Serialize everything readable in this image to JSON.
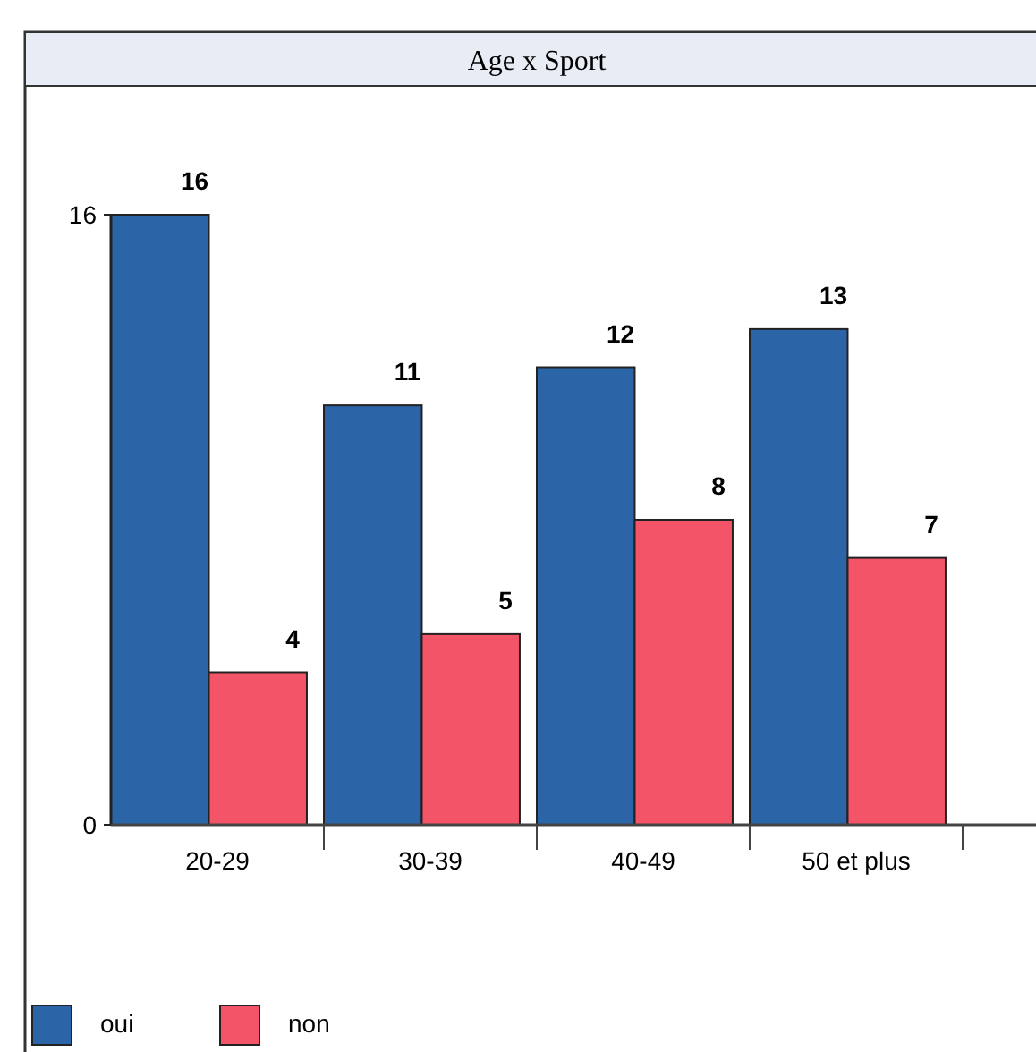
{
  "chart_data": {
    "type": "bar",
    "title": "Age x Sport",
    "categories": [
      "20-29",
      "30-39",
      "40-49",
      "50 et plus"
    ],
    "series": [
      {
        "name": "oui",
        "color": "#2c64a8",
        "values": [
          16,
          11,
          12,
          13
        ]
      },
      {
        "name": "non",
        "color": "#f45468",
        "values": [
          4,
          5,
          8,
          7
        ]
      }
    ],
    "ylim": [
      0,
      16
    ],
    "yticks": [
      0,
      16
    ],
    "data_labels": true,
    "legend": "bottom left",
    "grid": false
  }
}
